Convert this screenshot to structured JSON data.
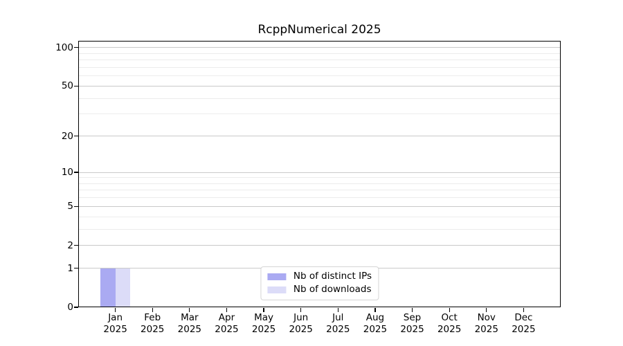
{
  "chart_data": {
    "type": "bar",
    "title": "RcppNumerical 2025",
    "categories": [
      [
        "Jan",
        "2025"
      ],
      [
        "Feb",
        "2025"
      ],
      [
        "Mar",
        "2025"
      ],
      [
        "Apr",
        "2025"
      ],
      [
        "May",
        "2025"
      ],
      [
        "Jun",
        "2025"
      ],
      [
        "Jul",
        "2025"
      ],
      [
        "Aug",
        "2025"
      ],
      [
        "Sep",
        "2025"
      ],
      [
        "Oct",
        "2025"
      ],
      [
        "Nov",
        "2025"
      ],
      [
        "Dec",
        "2025"
      ]
    ],
    "series": [
      {
        "name": "Nb of distinct IPs",
        "color": "#aaaaf2",
        "values": [
          1,
          0,
          0,
          0,
          0,
          0,
          0,
          0,
          0,
          0,
          0,
          0
        ]
      },
      {
        "name": "Nb of downloads",
        "color": "#dcdcf8",
        "values": [
          1,
          0,
          0,
          0,
          0,
          0,
          0,
          0,
          0,
          0,
          0,
          0
        ]
      }
    ],
    "yscale": "log1p",
    "ylim": [
      0,
      113
    ],
    "yticks": [
      0,
      1,
      2,
      5,
      10,
      20,
      50,
      100
    ],
    "yticks_minor": [
      3,
      4,
      6,
      7,
      8,
      9,
      30,
      40,
      60,
      70,
      80,
      90
    ],
    "grid": true,
    "legend_position": "lower center",
    "xlabel": "",
    "ylabel": ""
  },
  "colors": {
    "background": "#ffffff",
    "bar_distinct_ips": "#aaaaf2",
    "bar_downloads": "#dcdcf8",
    "grid_major": "#c9c9c9",
    "grid_minor": "#ececec",
    "axis": "#000000",
    "text": "#000000",
    "legend_border": "#d5d5d5"
  }
}
